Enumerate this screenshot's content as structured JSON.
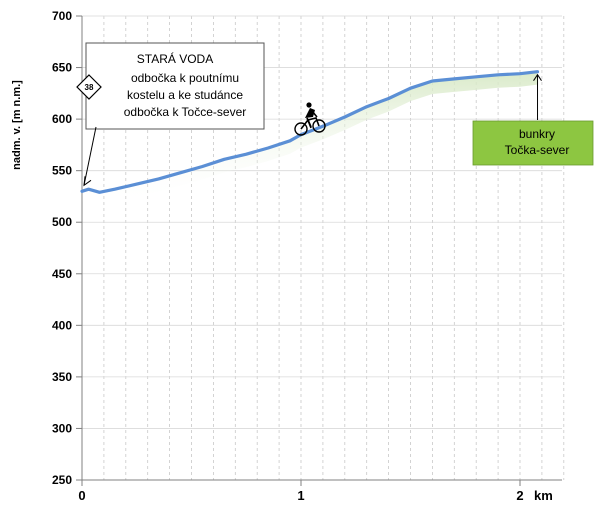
{
  "chart_data": {
    "type": "line",
    "ylabel": "nadm. v. [m n.m.]",
    "xunit": "km",
    "xlim": [
      0,
      2.2
    ],
    "ylim": [
      250,
      700
    ],
    "yticks": [
      250,
      300,
      350,
      400,
      450,
      500,
      550,
      600,
      650,
      700
    ],
    "xticks": [
      0,
      1,
      2
    ],
    "x_grid": true,
    "y_grid": true,
    "line_color": "#5b8fd5",
    "shadow_color": "#d6e8c4",
    "series": [
      {
        "x": [
          0,
          0.03,
          0.08,
          0.15,
          0.25,
          0.35,
          0.45,
          0.55,
          0.65,
          0.75,
          0.85,
          0.95,
          1.0,
          1.1,
          1.2,
          1.3,
          1.4,
          1.5,
          1.6,
          1.7,
          1.8,
          1.9,
          2.0,
          2.08
        ],
        "y": [
          530,
          532,
          529,
          532,
          537,
          542,
          548,
          554,
          561,
          566,
          572,
          579,
          585,
          593,
          602,
          612,
          620,
          630,
          637,
          639,
          641,
          643,
          644,
          646
        ]
      }
    ],
    "annotations": [
      {
        "title": "STARÁ VODA",
        "lines": [
          "odbočka k poutnímu",
          "kostelu a ke studánce",
          "odbočka k Točce-sever"
        ],
        "sign": "38",
        "x": 0,
        "y": 530
      },
      {
        "lines": [
          "bunkry",
          "Točka-sever"
        ],
        "x": 2.08,
        "y": 646,
        "fill": "#8dc641"
      }
    ],
    "marker": {
      "icon": "cyclist-icon",
      "x": 1.0,
      "y": 585
    }
  }
}
